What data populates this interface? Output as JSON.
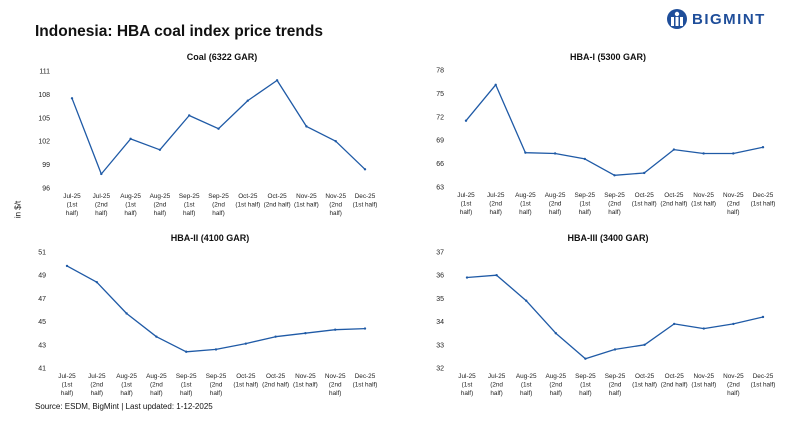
{
  "header": {
    "title": "Indonesia: HBA coal index price trends",
    "logo_text": "BIGMINT"
  },
  "y_axis_label": "in $/t",
  "footer": {
    "source": "Source: ESDM, BigMint | Last updated: 1-12-2025"
  },
  "colors": {
    "line": "#1f5aa6",
    "brand": "#1f4e9a"
  },
  "chart_data": [
    {
      "type": "line",
      "title": "Coal (6322 GAR)",
      "categories": [
        "Jul-25 (1st half)",
        "Jul-25 (2nd half)",
        "Aug-25 (1st half)",
        "Aug-25 (2nd half)",
        "Sep-25 (1st half)",
        "Sep-25 (2nd half)",
        "Oct-25 (1st half)",
        "Oct-25 (2nd half)",
        "Nov-25 (1st half)",
        "Nov-25 (2nd half)",
        "Dec-25 (1st half)"
      ],
      "category_lines": [
        [
          "Jul-25",
          "(1st",
          "half)"
        ],
        [
          "Jul-25",
          "(2nd",
          "half)"
        ],
        [
          "Aug-25",
          "(1st",
          "half)"
        ],
        [
          "Aug-25",
          "(2nd",
          "half)"
        ],
        [
          "Sep-25",
          "(1st",
          "half)"
        ],
        [
          "Sep-25",
          "(2nd",
          "half)"
        ],
        [
          "Oct-25",
          "(1st half)"
        ],
        [
          "Oct-25",
          "(2nd half)"
        ],
        [
          "Nov-25",
          "(1st half)"
        ],
        [
          "Nov-25",
          "(2nd",
          "half)"
        ],
        [
          "Dec-25",
          "(1st half)"
        ]
      ],
      "values": [
        107.5,
        97.8,
        102.3,
        100.9,
        105.3,
        103.6,
        107.2,
        109.8,
        103.9,
        102.0,
        98.4
      ],
      "ylim": [
        96,
        111
      ],
      "yticks": [
        96,
        99,
        102,
        105,
        108,
        111
      ],
      "grid": false
    },
    {
      "type": "line",
      "title": "HBA-I (5300 GAR)",
      "categories": [
        "Jul-25 (1st half)",
        "Jul-25 (2nd half)",
        "Aug-25 (1st half)",
        "Aug-25 (2nd half)",
        "Sep-25 (1st half)",
        "Sep-25 (2nd half)",
        "Oct-25 (1st half)",
        "Oct-25 (2nd half)",
        "Nov-25 (1st half)",
        "Nov-25 (2nd half)",
        "Dec-25 (1st half)"
      ],
      "category_lines": [
        [
          "Jul-25",
          "(1st",
          "half)"
        ],
        [
          "Jul-25",
          "(2nd",
          "half)"
        ],
        [
          "Aug-25",
          "(1st",
          "half)"
        ],
        [
          "Aug-25",
          "(2nd",
          "half)"
        ],
        [
          "Sep-25",
          "(1st",
          "half)"
        ],
        [
          "Sep-25",
          "(2nd",
          "half)"
        ],
        [
          "Oct-25",
          "(1st half)"
        ],
        [
          "Oct-25",
          "(2nd half)"
        ],
        [
          "Nov-25",
          "(1st half)"
        ],
        [
          "Nov-25",
          "(2nd",
          "half)"
        ],
        [
          "Dec-25",
          "(1st half)"
        ]
      ],
      "values": [
        71.5,
        76.1,
        67.4,
        67.3,
        66.6,
        64.5,
        64.8,
        67.8,
        67.3,
        67.3,
        68.1
      ],
      "ylim": [
        63,
        78
      ],
      "yticks": [
        63,
        66,
        69,
        72,
        75,
        78
      ],
      "grid": false
    },
    {
      "type": "line",
      "title": "HBA-II (4100 GAR)",
      "categories": [
        "Jul-25 (1st half)",
        "Jul-25 (2nd half)",
        "Aug-25 (1st half)",
        "Aug-25 (2nd half)",
        "Sep-25 (1st half)",
        "Sep-25 (2nd half)",
        "Oct-25 (1st half)",
        "Oct-25 (2nd half)",
        "Nov-25 (1st half)",
        "Nov-25 (2nd half)",
        "Dec-25 (1st half)"
      ],
      "category_lines": [
        [
          "Jul-25",
          "(1st",
          "half)"
        ],
        [
          "Jul-25",
          "(2nd",
          "half)"
        ],
        [
          "Aug-25",
          "(1st",
          "half)"
        ],
        [
          "Aug-25",
          "(2nd",
          "half)"
        ],
        [
          "Sep-25",
          "(1st",
          "half)"
        ],
        [
          "Sep-25",
          "(2nd",
          "half)"
        ],
        [
          "Oct-25",
          "(1st half)"
        ],
        [
          "Oct-25",
          "(2nd half)"
        ],
        [
          "Nov-25",
          "(1st half)"
        ],
        [
          "Nov-25",
          "(2nd",
          "half)"
        ],
        [
          "Dec-25",
          "(1st half)"
        ]
      ],
      "values": [
        49.8,
        48.4,
        45.7,
        43.7,
        42.4,
        42.6,
        43.1,
        43.7,
        44.0,
        44.3,
        44.4
      ],
      "ylim": [
        41,
        51
      ],
      "yticks": [
        41,
        43,
        45,
        47,
        49,
        51
      ],
      "grid": false
    },
    {
      "type": "line",
      "title": "HBA-III (3400 GAR)",
      "categories": [
        "Jul-25 (1st half)",
        "Jul-25 (2nd half)",
        "Aug-25 (1st half)",
        "Aug-25 (2nd half)",
        "Sep-25 (1st half)",
        "Sep-25 (2nd half)",
        "Oct-25 (1st half)",
        "Oct-25 (2nd half)",
        "Nov-25 (1st half)",
        "Nov-25 (2nd half)",
        "Dec-25 (1st half)"
      ],
      "category_lines": [
        [
          "Jul-25",
          "(1st",
          "half)"
        ],
        [
          "Jul-25",
          "(2nd",
          "half)"
        ],
        [
          "Aug-25",
          "(1st",
          "half)"
        ],
        [
          "Aug-25",
          "(2nd",
          "half)"
        ],
        [
          "Sep-25",
          "(1st",
          "half)"
        ],
        [
          "Sep-25",
          "(2nd",
          "half)"
        ],
        [
          "Oct-25",
          "(1st half)"
        ],
        [
          "Oct-25",
          "(2nd half)"
        ],
        [
          "Nov-25",
          "(1st half)"
        ],
        [
          "Nov-25",
          "(2nd",
          "half)"
        ],
        [
          "Dec-25",
          "(1st half)"
        ]
      ],
      "values": [
        35.9,
        36.0,
        34.9,
        33.5,
        32.4,
        32.8,
        33.0,
        33.9,
        33.7,
        33.9,
        34.2
      ],
      "ylim": [
        32,
        37
      ],
      "yticks": [
        32,
        33,
        34,
        35,
        36,
        37
      ],
      "grid": false
    }
  ]
}
